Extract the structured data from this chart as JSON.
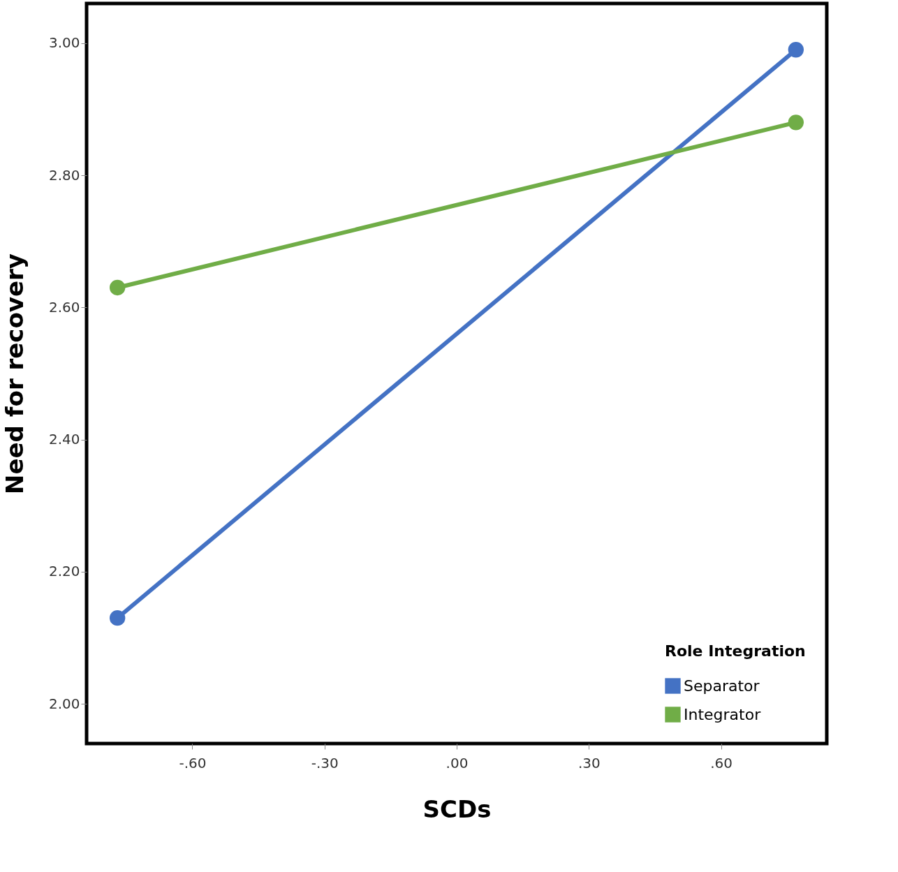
{
  "chart_data": {
    "type": "line",
    "xlabel": "SCDs",
    "ylabel": "Need for recovery",
    "legend_title": "Role Integration",
    "x": [
      -0.77,
      0.77
    ],
    "series": [
      {
        "name": "Separator",
        "color": "#4472c4",
        "values": [
          2.13,
          2.99
        ]
      },
      {
        "name": "Integrator",
        "color": "#70ad47",
        "values": [
          2.63,
          2.88
        ]
      }
    ],
    "xlim": [
      -0.84,
      0.84
    ],
    "ylim": [
      1.94,
      3.06
    ],
    "xticks": [
      {
        "value": -0.6,
        "label": "-.60"
      },
      {
        "value": -0.3,
        "label": "-.30"
      },
      {
        "value": 0,
        "label": ".00"
      },
      {
        "value": 0.3,
        "label": ".30"
      },
      {
        "value": 0.6,
        "label": ".60"
      }
    ],
    "yticks": [
      {
        "value": 2.0,
        "label": "2.00"
      },
      {
        "value": 2.2,
        "label": "2.20"
      },
      {
        "value": 2.4,
        "label": "2.40"
      },
      {
        "value": 2.6,
        "label": "2.60"
      },
      {
        "value": 2.8,
        "label": "2.80"
      },
      {
        "value": 3.0,
        "label": "3.00"
      }
    ],
    "grid": false,
    "legend": "bottom right",
    "marker": "circle",
    "line_style": "solid"
  }
}
